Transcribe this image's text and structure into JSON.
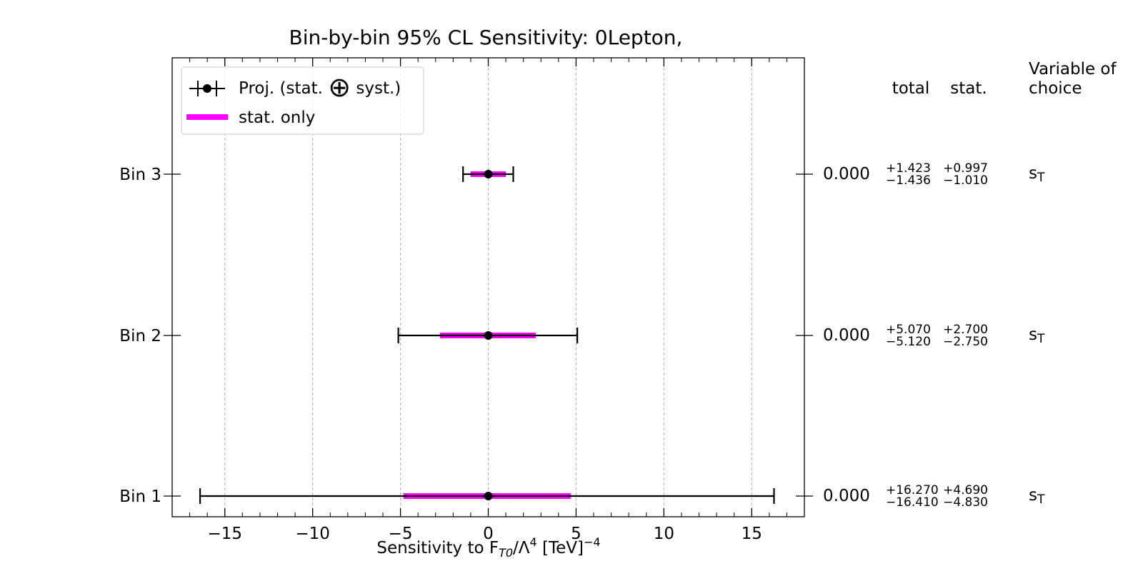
{
  "chart_data": {
    "type": "errorbar",
    "orientation": "horizontal",
    "title": "Bin-by-bin 95% CL Sensitivity: 0Lepton,",
    "xlabel": {
      "prefix": "Sensitivity to F",
      "subscript": "T0",
      "mid": "/Λ",
      "superscript": "4",
      "unit": " [TeV]",
      "unit_superscript": "−4"
    },
    "xlim": [
      -18,
      18
    ],
    "xticks": [
      -15,
      -10,
      -5,
      0,
      5,
      10,
      15
    ],
    "xtick_labels": [
      "−15",
      "−10",
      "−5",
      "0",
      "5",
      "10",
      "15"
    ],
    "grid": "vertical dashed",
    "legend": {
      "placement": "top-left",
      "entries": [
        {
          "before": "Proj. (stat. ",
          "symbol": "⊕",
          "after": " syst.)",
          "style": "errorbar",
          "color": "#000000"
        },
        {
          "label": "stat. only",
          "style": "band",
          "color": "#ff00ff"
        }
      ]
    },
    "bins": [
      {
        "label": "Bin 3",
        "central": 0.0,
        "central_text": "0.000",
        "total_up": 1.423,
        "total_down": -1.436,
        "stat_up": 0.997,
        "stat_down": -1.01,
        "total_up_text": "+1.423",
        "total_down_text": "−1.436",
        "stat_up_text": "+0.997",
        "stat_down_text": "−1.010",
        "variable": "s",
        "variable_sub": "T"
      },
      {
        "label": "Bin 2",
        "central": 0.0,
        "central_text": "0.000",
        "total_up": 5.07,
        "total_down": -5.12,
        "stat_up": 2.7,
        "stat_down": -2.75,
        "total_up_text": "+5.070",
        "total_down_text": "−5.120",
        "stat_up_text": "+2.700",
        "stat_down_text": "−2.750",
        "variable": "s",
        "variable_sub": "T"
      },
      {
        "label": "Bin 1",
        "central": 0.0,
        "central_text": "0.000",
        "total_up": 16.27,
        "total_down": -16.41,
        "stat_up": 4.69,
        "stat_down": -4.83,
        "total_up_text": "+16.270",
        "total_down_text": "−16.410",
        "stat_up_text": "+4.690",
        "stat_down_text": "−4.830",
        "variable": "s",
        "variable_sub": "T"
      }
    ],
    "table_headers": {
      "total": "total",
      "stat": "stat.",
      "variable_line1": "Variable of",
      "variable_line2": "choice"
    },
    "colors": {
      "total": "#000000",
      "stat": "#ff00ff",
      "grid": "#b0b0b0"
    }
  }
}
